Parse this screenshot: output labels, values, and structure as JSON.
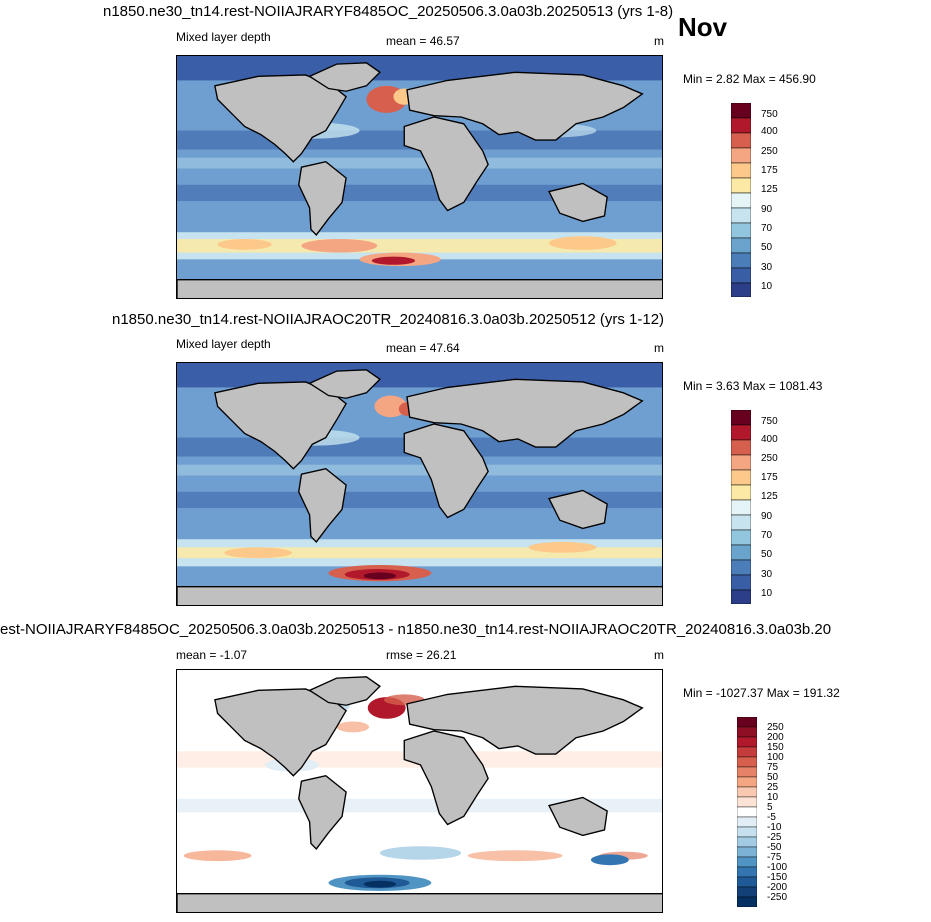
{
  "month": "Nov",
  "panels": [
    {
      "title": "n1850.ne30_tn14.rest-NOIIAJRARYF8485OC_20250506.3.0a03b.20250513 (yrs 1-8)",
      "left_label": "Mixed layer depth",
      "center_label": "mean =  46.57",
      "units": "m",
      "minmax": "Min =   2.82 Max = 456.90",
      "colorbar_labels": [
        "750",
        "400",
        "250",
        "175",
        "125",
        "90",
        "70",
        "50",
        "30",
        "10"
      ],
      "colorbar_colors": [
        "#67001f",
        "#b2182b",
        "#d6604d",
        "#f4a582",
        "#fdc98a",
        "#fbe9a5",
        "#e5f4f7",
        "#c6e3ef",
        "#92c5de",
        "#6aa3cc",
        "#4b7db8",
        "#3a5ea6",
        "#2c3e87"
      ]
    },
    {
      "title": "n1850.ne30_tn14.rest-NOIIAJRAOC20TR_20240816.3.0a03b.20250512 (yrs 1-12)",
      "left_label": "Mixed layer depth",
      "center_label": "mean =  47.64",
      "units": "m",
      "minmax": "Min =   3.63 Max = 1081.43",
      "colorbar_labels": [
        "750",
        "400",
        "250",
        "175",
        "125",
        "90",
        "70",
        "50",
        "30",
        "10"
      ],
      "colorbar_colors": [
        "#67001f",
        "#b2182b",
        "#d6604d",
        "#f4a582",
        "#fdc98a",
        "#fbe9a5",
        "#e5f4f7",
        "#c6e3ef",
        "#92c5de",
        "#6aa3cc",
        "#4b7db8",
        "#3a5ea6",
        "#2c3e87"
      ]
    },
    {
      "title": "est-NOIIAJRARYF8485OC_20250506.3.0a03b.20250513 - n1850.ne30_tn14.rest-NOIIAJRAOC20TR_20240816.3.0a03b.20",
      "left_label": "mean =  -1.07",
      "center_label": "rmse =  26.21",
      "units": "m",
      "minmax": "Min = -1027.37 Max = 191.32",
      "colorbar_labels": [
        "250",
        "200",
        "150",
        "100",
        "75",
        "50",
        "25",
        "10",
        "5",
        "-5",
        "-10",
        "-25",
        "-50",
        "-75",
        "-100",
        "-150",
        "-200",
        "-250"
      ],
      "colorbar_colors": [
        "#67001f",
        "#8e0f24",
        "#b2182b",
        "#c43c3c",
        "#d6604d",
        "#e58267",
        "#f4a582",
        "#f9c8b0",
        "#fde3d6",
        "#ffffff",
        "#e2eef6",
        "#c6e0ef",
        "#a3cbe3",
        "#7bb2d6",
        "#5094c4",
        "#3275b0",
        "#1f5a97",
        "#134077",
        "#053061"
      ]
    }
  ],
  "colors": {
    "land": "#c0c0c0",
    "ocean_mid": "#6f9fd0",
    "ocean_deep": "#3b5ea8"
  }
}
